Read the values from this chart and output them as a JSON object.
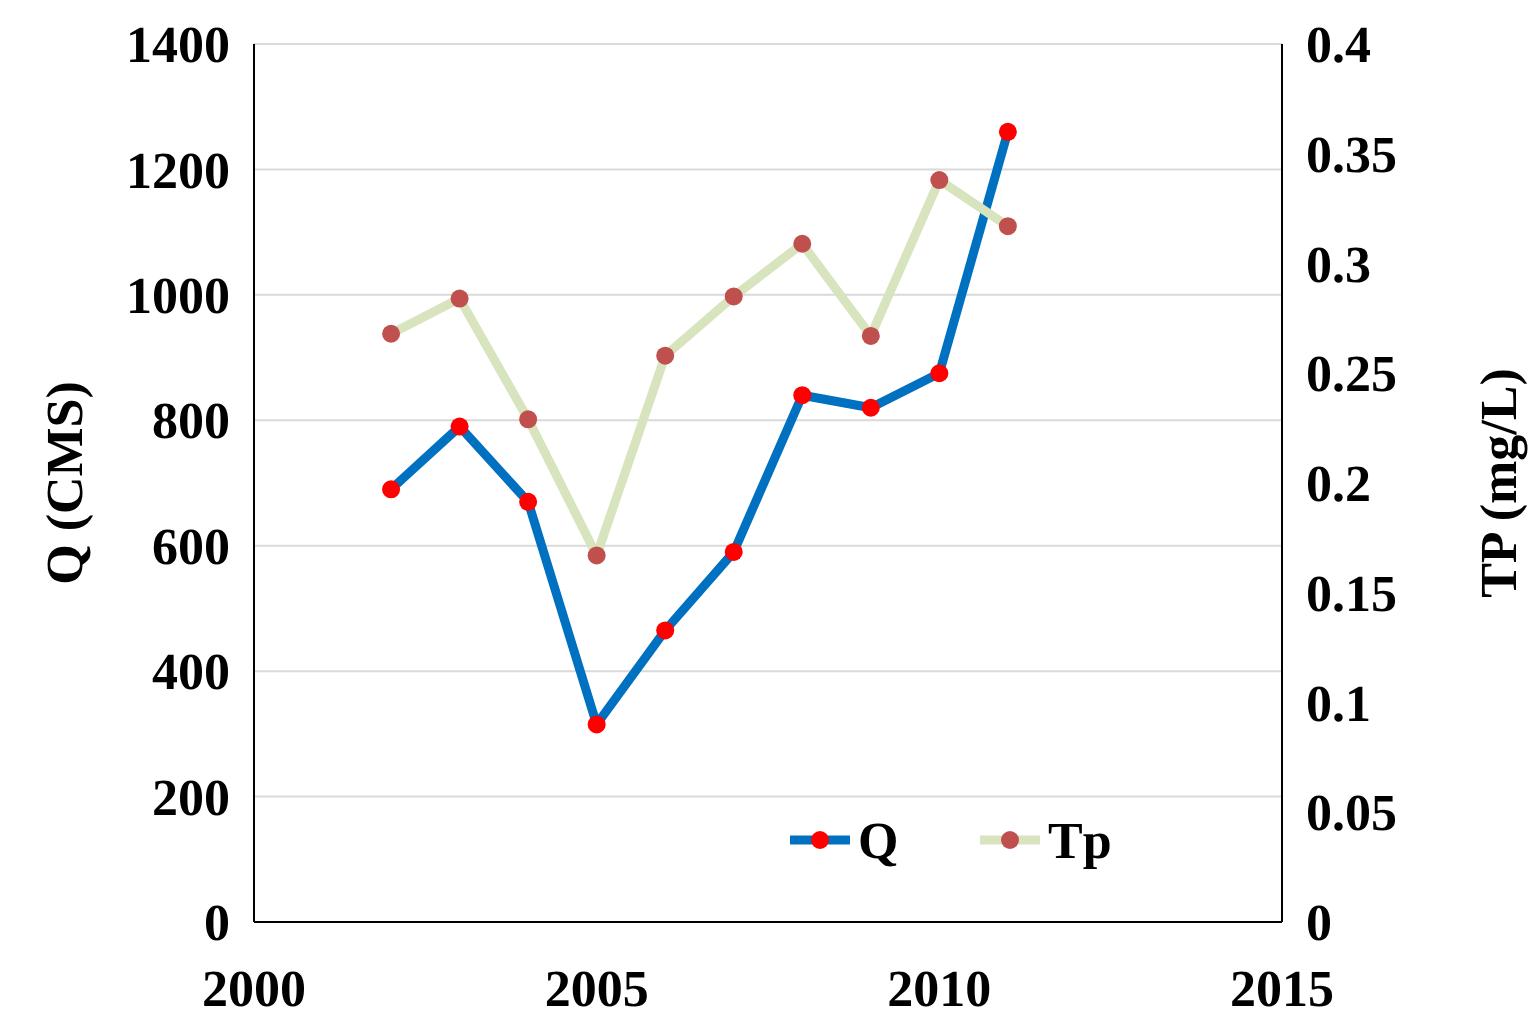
{
  "chart_data": {
    "type": "line",
    "ylabel": "Q (CMS)",
    "y2label": "TP (mg/L)",
    "x": [
      2002,
      2003,
      2004,
      2005,
      2006,
      2007,
      2008,
      2009,
      2010,
      2011
    ],
    "series": [
      {
        "name": "Q",
        "color": "#0070c0",
        "colors": [
          "#ff0000",
          "#ff0000",
          "#ff0000",
          "#ff0000",
          "#ff0000",
          "#ff0000",
          "#ff0000",
          "#ff0000",
          "#ff0000",
          "#ff0000"
        ],
        "values": [
          690,
          790,
          670,
          315,
          465,
          590,
          840,
          820,
          875,
          1260
        ]
      },
      {
        "name": "Tp",
        "color": "#d7e4bd",
        "colors": [
          "#c0504d",
          "#c0504d",
          "#c0504d",
          "#c0504d",
          "#c0504d",
          "#c0504d",
          "#c0504d",
          "#c0504d",
          "#c0504d",
          "#c0504d"
        ],
        "axis": "y2",
        "values": [
          0.268,
          0.284,
          0.229,
          0.167,
          0.258,
          0.285,
          0.309,
          0.267,
          0.338,
          0.317
        ]
      }
    ],
    "xlim": [
      2000,
      2015
    ],
    "xticks": [
      2000,
      2005,
      2010,
      2015
    ],
    "ylim": [
      0,
      1400
    ],
    "yticks": [
      0,
      200,
      400,
      600,
      800,
      1000,
      1200,
      1400
    ],
    "y2lim": [
      0,
      0.4
    ],
    "y2ticks": [
      0,
      {
        "value": 0.05,
        "label": "0.05"
      },
      {
        "value": 0.1,
        "label": "0.1"
      },
      {
        "value": 0.15,
        "label": "0.15"
      },
      {
        "value": 0.2,
        "label": "0.2"
      },
      {
        "value": 0.25,
        "label": "0.25"
      },
      {
        "value": 0.3,
        "label": "0.3"
      },
      {
        "value": 0.35,
        "label": "0.35"
      },
      {
        "value": 0.4,
        "label": "0.4"
      }
    ],
    "grid": "y",
    "legend": "bottom",
    "marker": "circle"
  }
}
